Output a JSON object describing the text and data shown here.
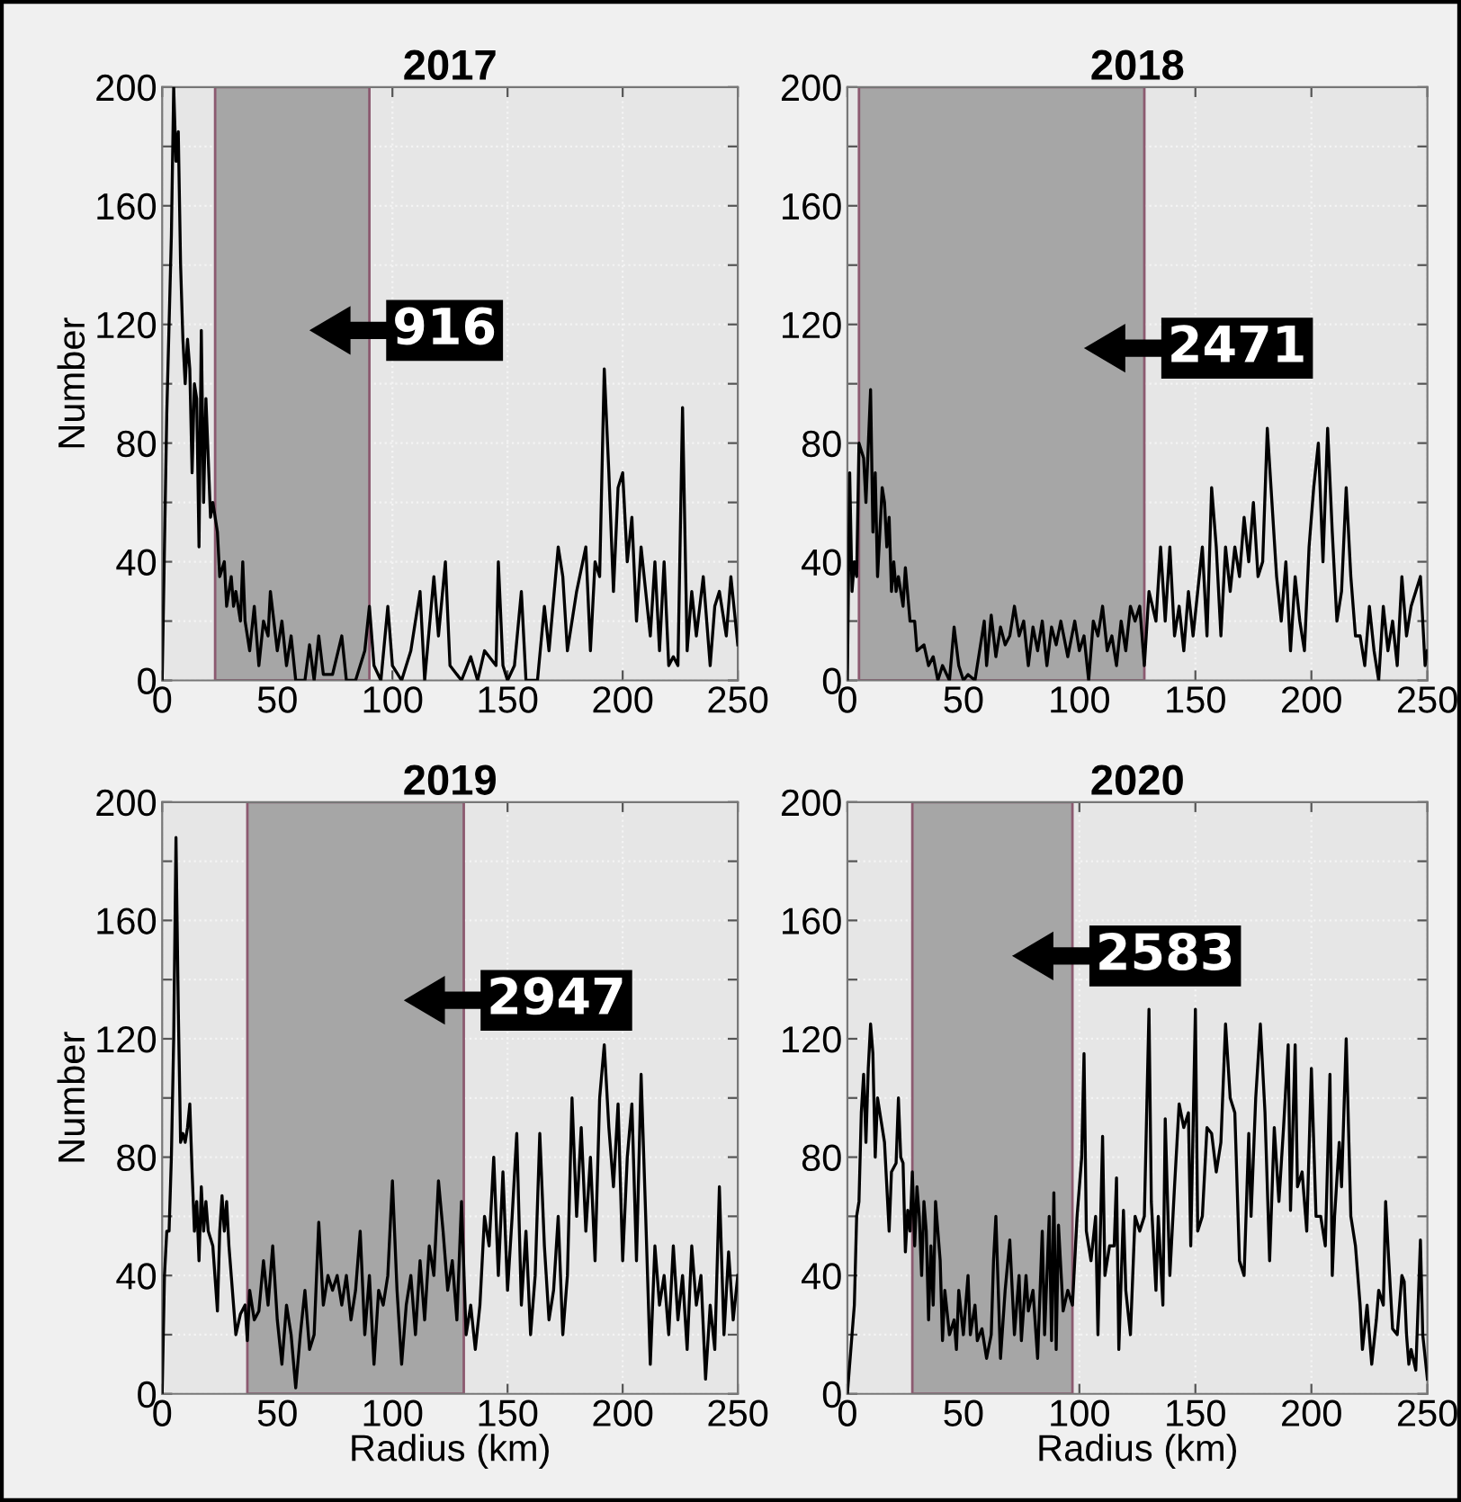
{
  "chart_data": [
    {
      "type": "line",
      "title": "2017",
      "ylabel": "Number",
      "xlim": [
        0,
        250
      ],
      "ylim": [
        0,
        200
      ],
      "xticks": [
        0,
        50,
        100,
        150,
        200,
        250
      ],
      "yticks": [
        0,
        {
          "value": 20,
          "label": null
        },
        40,
        {
          "value": 60,
          "label": null
        },
        80,
        {
          "value": 100,
          "label": null
        },
        120,
        {
          "value": 140,
          "label": null
        },
        160,
        {
          "value": 180,
          "label": null
        },
        200
      ],
      "grid": true,
      "bands": [
        {
          "axis": "x",
          "from": 23,
          "to": 90,
          "label": null,
          "color": "#a6a6a6"
        }
      ],
      "annotations": [
        "916"
      ],
      "x": [
        0,
        2,
        4,
        5,
        6,
        7,
        8,
        9,
        10,
        11,
        12,
        13,
        14,
        15,
        16,
        17,
        18,
        19,
        20,
        21,
        22,
        24,
        25,
        27,
        28,
        30,
        31,
        32,
        34,
        35,
        36,
        38,
        40,
        42,
        44,
        46,
        47,
        50,
        52,
        54,
        56,
        58,
        62,
        64,
        66,
        68,
        70,
        74,
        78,
        80,
        84,
        88,
        90,
        92,
        95,
        98,
        100,
        104,
        108,
        112,
        114,
        118,
        120,
        123,
        125,
        130,
        134,
        137,
        140,
        145,
        146,
        148,
        150,
        153,
        156,
        158,
        163,
        166,
        168,
        172,
        174,
        176,
        180,
        184,
        186,
        188,
        190,
        192,
        194,
        196,
        198,
        200,
        202,
        204,
        206,
        208,
        210,
        212,
        214,
        216,
        218,
        220,
        222,
        224,
        226,
        228,
        230,
        232,
        235,
        238,
        240,
        242,
        245,
        247,
        250
      ],
      "series": [
        {
          "color": "#000000",
          "values": [
            0,
            90,
            150,
            200,
            175,
            185,
            140,
            115,
            100,
            115,
            105,
            70,
            100,
            95,
            45,
            118,
            60,
            95,
            75,
            55,
            60,
            50,
            35,
            40,
            25,
            35,
            25,
            30,
            20,
            40,
            20,
            10,
            25,
            5,
            20,
            15,
            30,
            10,
            20,
            5,
            15,
            0,
            0,
            12,
            0,
            15,
            2,
            2,
            15,
            0,
            0,
            10,
            25,
            5,
            0,
            25,
            5,
            0,
            10,
            30,
            0,
            35,
            15,
            40,
            5,
            0,
            8,
            0,
            10,
            5,
            40,
            5,
            0,
            5,
            30,
            0,
            0,
            25,
            10,
            45,
            35,
            10,
            30,
            45,
            10,
            40,
            35,
            105,
            70,
            30,
            65,
            70,
            40,
            55,
            20,
            45,
            30,
            15,
            40,
            10,
            40,
            5,
            8,
            5,
            92,
            10,
            30,
            15,
            35,
            5,
            25,
            30,
            15,
            35,
            12
          ]
        }
      ]
    },
    {
      "type": "line",
      "title": "2018",
      "xlim": [
        0,
        250
      ],
      "ylim": [
        0,
        200
      ],
      "xticks": [
        0,
        50,
        100,
        150,
        200,
        250
      ],
      "yticks": [
        0,
        {
          "value": 20,
          "label": null
        },
        40,
        {
          "value": 60,
          "label": null
        },
        80,
        {
          "value": 100,
          "label": null
        },
        120,
        {
          "value": 140,
          "label": null
        },
        160,
        {
          "value": 180,
          "label": null
        },
        200
      ],
      "grid": true,
      "bands": [
        {
          "axis": "x",
          "from": 5,
          "to": 128,
          "label": null,
          "color": "#a6a6a6"
        }
      ],
      "annotations": [
        "2471"
      ],
      "x": [
        0,
        1,
        2,
        3,
        4,
        5,
        7,
        8,
        10,
        11,
        12,
        13,
        15,
        16,
        17,
        18,
        19,
        20,
        21,
        22,
        24,
        25,
        27,
        29,
        30,
        33,
        35,
        37,
        39,
        41,
        44,
        46,
        48,
        50,
        52,
        55,
        57,
        59,
        60,
        62,
        64,
        66,
        68,
        70,
        72,
        74,
        76,
        78,
        80,
        82,
        84,
        86,
        88,
        90,
        92,
        95,
        98,
        100,
        102,
        104,
        106,
        108,
        110,
        112,
        114,
        116,
        118,
        120,
        122,
        124,
        126,
        128,
        130,
        133,
        135,
        137,
        139,
        141,
        143,
        145,
        147,
        149,
        151,
        153,
        155,
        157,
        159,
        161,
        163,
        165,
        167,
        169,
        171,
        173,
        175,
        177,
        179,
        181,
        183,
        185,
        187,
        189,
        191,
        193,
        195,
        197,
        199,
        201,
        203,
        205,
        207,
        209,
        211,
        213,
        215,
        217,
        219,
        221,
        223,
        225,
        227,
        229,
        231,
        233,
        235,
        237,
        239,
        241,
        243,
        245,
        247,
        249,
        250
      ],
      "series": [
        {
          "color": "#000000",
          "values": [
            0,
            70,
            30,
            40,
            35,
            80,
            75,
            60,
            98,
            50,
            70,
            35,
            65,
            60,
            45,
            55,
            30,
            40,
            30,
            35,
            25,
            38,
            20,
            20,
            10,
            12,
            5,
            8,
            0,
            5,
            0,
            18,
            5,
            0,
            2,
            0,
            10,
            20,
            5,
            22,
            8,
            18,
            12,
            15,
            25,
            15,
            20,
            5,
            18,
            10,
            20,
            5,
            18,
            12,
            20,
            8,
            20,
            10,
            15,
            0,
            20,
            15,
            25,
            10,
            15,
            5,
            20,
            10,
            25,
            20,
            25,
            5,
            30,
            20,
            45,
            20,
            45,
            15,
            25,
            10,
            30,
            15,
            30,
            45,
            15,
            65,
            45,
            15,
            45,
            30,
            45,
            35,
            55,
            40,
            60,
            35,
            40,
            85,
            60,
            35,
            20,
            40,
            10,
            35,
            20,
            10,
            45,
            65,
            80,
            40,
            85,
            50,
            20,
            30,
            65,
            35,
            15,
            15,
            5,
            25,
            10,
            0,
            25,
            10,
            20,
            5,
            35,
            15,
            25,
            30,
            35,
            5,
            10
          ]
        }
      ]
    },
    {
      "type": "line",
      "title": "2019",
      "xlabel": "Radius (km)",
      "ylabel": "Number",
      "xlim": [
        0,
        250
      ],
      "ylim": [
        0,
        200
      ],
      "xticks": [
        0,
        50,
        100,
        150,
        200,
        250
      ],
      "yticks": [
        0,
        {
          "value": 20,
          "label": null
        },
        40,
        {
          "value": 60,
          "label": null
        },
        80,
        {
          "value": 100,
          "label": null
        },
        120,
        {
          "value": 140,
          "label": null
        },
        160,
        {
          "value": 180,
          "label": null
        },
        200
      ],
      "grid": true,
      "bands": [
        {
          "axis": "x",
          "from": 37,
          "to": 131,
          "label": null,
          "color": "#a6a6a6"
        }
      ],
      "annotations": [
        "2947"
      ],
      "x": [
        0,
        1,
        2,
        3,
        4,
        5,
        6,
        7,
        8,
        9,
        10,
        11,
        12,
        13,
        14,
        15,
        16,
        17,
        18,
        19,
        20,
        22,
        24,
        25,
        26,
        27,
        28,
        29,
        31,
        32,
        34,
        36,
        37,
        38,
        40,
        42,
        44,
        46,
        48,
        50,
        52,
        54,
        56,
        58,
        60,
        62,
        64,
        66,
        68,
        70,
        72,
        74,
        76,
        78,
        80,
        82,
        84,
        86,
        88,
        90,
        92,
        94,
        96,
        98,
        100,
        102,
        104,
        106,
        108,
        110,
        112,
        114,
        116,
        118,
        120,
        122,
        124,
        126,
        128,
        130,
        132,
        134,
        136,
        138,
        140,
        142,
        144,
        146,
        148,
        150,
        152,
        154,
        156,
        158,
        160,
        162,
        164,
        166,
        168,
        170,
        172,
        174,
        176,
        178,
        180,
        182,
        184,
        186,
        188,
        190,
        192,
        194,
        196,
        198,
        200,
        202,
        204,
        206,
        208,
        210,
        212,
        214,
        216,
        218,
        220,
        222,
        224,
        226,
        228,
        230,
        232,
        234,
        236,
        238,
        240,
        242,
        244,
        246,
        248,
        250
      ],
      "series": [
        {
          "color": "#000000",
          "values": [
            0,
            40,
            55,
            55,
            80,
            120,
            188,
            130,
            85,
            88,
            85,
            90,
            98,
            75,
            55,
            65,
            45,
            70,
            55,
            65,
            55,
            50,
            28,
            55,
            67,
            55,
            65,
            50,
            30,
            20,
            27,
            30,
            18,
            35,
            25,
            28,
            45,
            30,
            50,
            25,
            10,
            30,
            20,
            2,
            20,
            35,
            15,
            20,
            58,
            30,
            40,
            35,
            40,
            30,
            40,
            25,
            35,
            55,
            20,
            40,
            10,
            35,
            30,
            40,
            72,
            35,
            10,
            30,
            40,
            20,
            45,
            25,
            50,
            40,
            72,
            55,
            35,
            45,
            25,
            65,
            20,
            30,
            15,
            30,
            60,
            50,
            80,
            40,
            75,
            35,
            60,
            88,
            30,
            55,
            20,
            40,
            88,
            50,
            25,
            35,
            60,
            20,
            40,
            100,
            60,
            90,
            55,
            80,
            45,
            100,
            118,
            90,
            70,
            98,
            45,
            80,
            98,
            45,
            108,
            60,
            10,
            50,
            30,
            40,
            20,
            50,
            25,
            40,
            15,
            50,
            30,
            40,
            5,
            30,
            15,
            70,
            20,
            48,
            25,
            40
          ]
        }
      ]
    },
    {
      "type": "line",
      "title": "2020",
      "xlabel": "Radius (km)",
      "xlim": [
        0,
        250
      ],
      "ylim": [
        0,
        200
      ],
      "xticks": [
        0,
        50,
        100,
        150,
        200,
        250
      ],
      "yticks": [
        0,
        {
          "value": 20,
          "label": null
        },
        40,
        {
          "value": 60,
          "label": null
        },
        80,
        {
          "value": 100,
          "label": null
        },
        120,
        {
          "value": 140,
          "label": null
        },
        160,
        {
          "value": 180,
          "label": null
        },
        200
      ],
      "grid": true,
      "bands": [
        {
          "axis": "x",
          "from": 28,
          "to": 97,
          "label": null,
          "color": "#a6a6a6"
        }
      ],
      "annotations": [
        "2583"
      ],
      "x": [
        0,
        2,
        3,
        4,
        5,
        6,
        7,
        8,
        9,
        10,
        11,
        12,
        13,
        14,
        16,
        17,
        18,
        19,
        21,
        22,
        23,
        24,
        25,
        26,
        27,
        28,
        29,
        30,
        31,
        32,
        33,
        34,
        35,
        36,
        37,
        38,
        39,
        40,
        41,
        42,
        44,
        46,
        47,
        48,
        50,
        52,
        53,
        55,
        56,
        58,
        60,
        62,
        63,
        64,
        66,
        68,
        70,
        72,
        74,
        75,
        77,
        78,
        80,
        82,
        84,
        85,
        87,
        88,
        89,
        90,
        91,
        93,
        95,
        97,
        99,
        101,
        102,
        103,
        105,
        107,
        108,
        110,
        111,
        113,
        115,
        116,
        117,
        119,
        120,
        122,
        124,
        126,
        128,
        130,
        131,
        133,
        134,
        136,
        137,
        138,
        139,
        141,
        143,
        145,
        147,
        148,
        150,
        151,
        153,
        155,
        157,
        159,
        161,
        163,
        165,
        167,
        169,
        171,
        173,
        174,
        176,
        178,
        180,
        182,
        184,
        186,
        188,
        190,
        191,
        193,
        194,
        196,
        198,
        200,
        202,
        204,
        206,
        208,
        209,
        210,
        212,
        213,
        215,
        217,
        219,
        221,
        222,
        224,
        226,
        228,
        229,
        231,
        232,
        233,
        235,
        237,
        239,
        240,
        241,
        242,
        243,
        245,
        247,
        248,
        250
      ],
      "series": [
        {
          "color": "#000000",
          "values": [
            0,
            20,
            30,
            60,
            65,
            95,
            108,
            85,
            110,
            125,
            115,
            80,
            100,
            95,
            85,
            70,
            55,
            75,
            78,
            100,
            80,
            78,
            48,
            62,
            55,
            75,
            50,
            70,
            60,
            40,
            65,
            55,
            25,
            50,
            30,
            65,
            55,
            45,
            18,
            35,
            20,
            25,
            15,
            35,
            20,
            40,
            20,
            30,
            18,
            22,
            12,
            20,
            45,
            60,
            12,
            35,
            52,
            20,
            40,
            18,
            40,
            28,
            35,
            12,
            55,
            20,
            60,
            18,
            68,
            15,
            57,
            28,
            35,
            30,
            60,
            80,
            115,
            55,
            45,
            60,
            20,
            87,
            40,
            50,
            50,
            73,
            15,
            62,
            35,
            20,
            60,
            55,
            60,
            130,
            65,
            35,
            60,
            30,
            93,
            65,
            40,
            70,
            98,
            90,
            95,
            50,
            130,
            55,
            60,
            90,
            88,
            75,
            85,
            125,
            100,
            95,
            45,
            40,
            88,
            60,
            100,
            125,
            95,
            45,
            90,
            65,
            90,
            118,
            62,
            118,
            70,
            75,
            55,
            110,
            60,
            60,
            50,
            108,
            40,
            60,
            85,
            70,
            120,
            60,
            50,
            30,
            15,
            30,
            10,
            25,
            35,
            30,
            65,
            50,
            22,
            20,
            40,
            38,
            20,
            10,
            15,
            8,
            52,
            20,
            5
          ]
        }
      ]
    }
  ]
}
